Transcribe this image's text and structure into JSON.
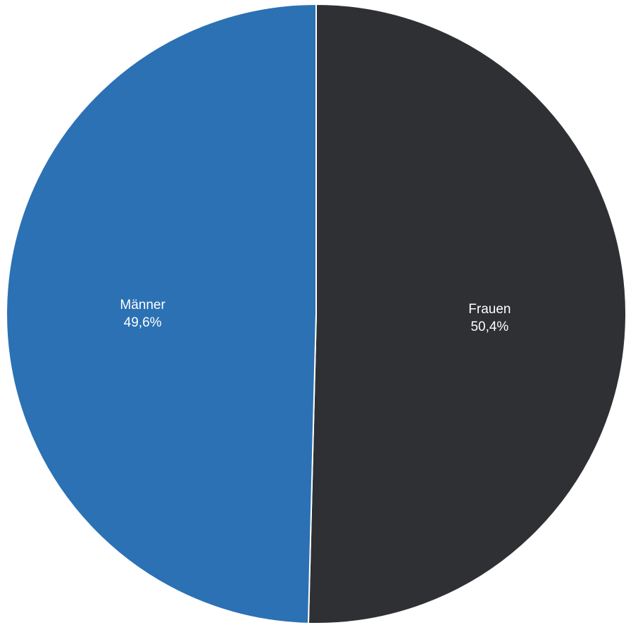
{
  "chart_data": {
    "type": "pie",
    "title": "",
    "slices": [
      {
        "name": "Frauen",
        "value": 50.4,
        "label": "50,4%",
        "color": "#2f3034"
      },
      {
        "name": "Männer",
        "value": 49.6,
        "label": "49,6%",
        "color": "#2b71b4"
      }
    ],
    "start_angle_deg": 0,
    "direction": "clockwise",
    "legend": "none"
  }
}
